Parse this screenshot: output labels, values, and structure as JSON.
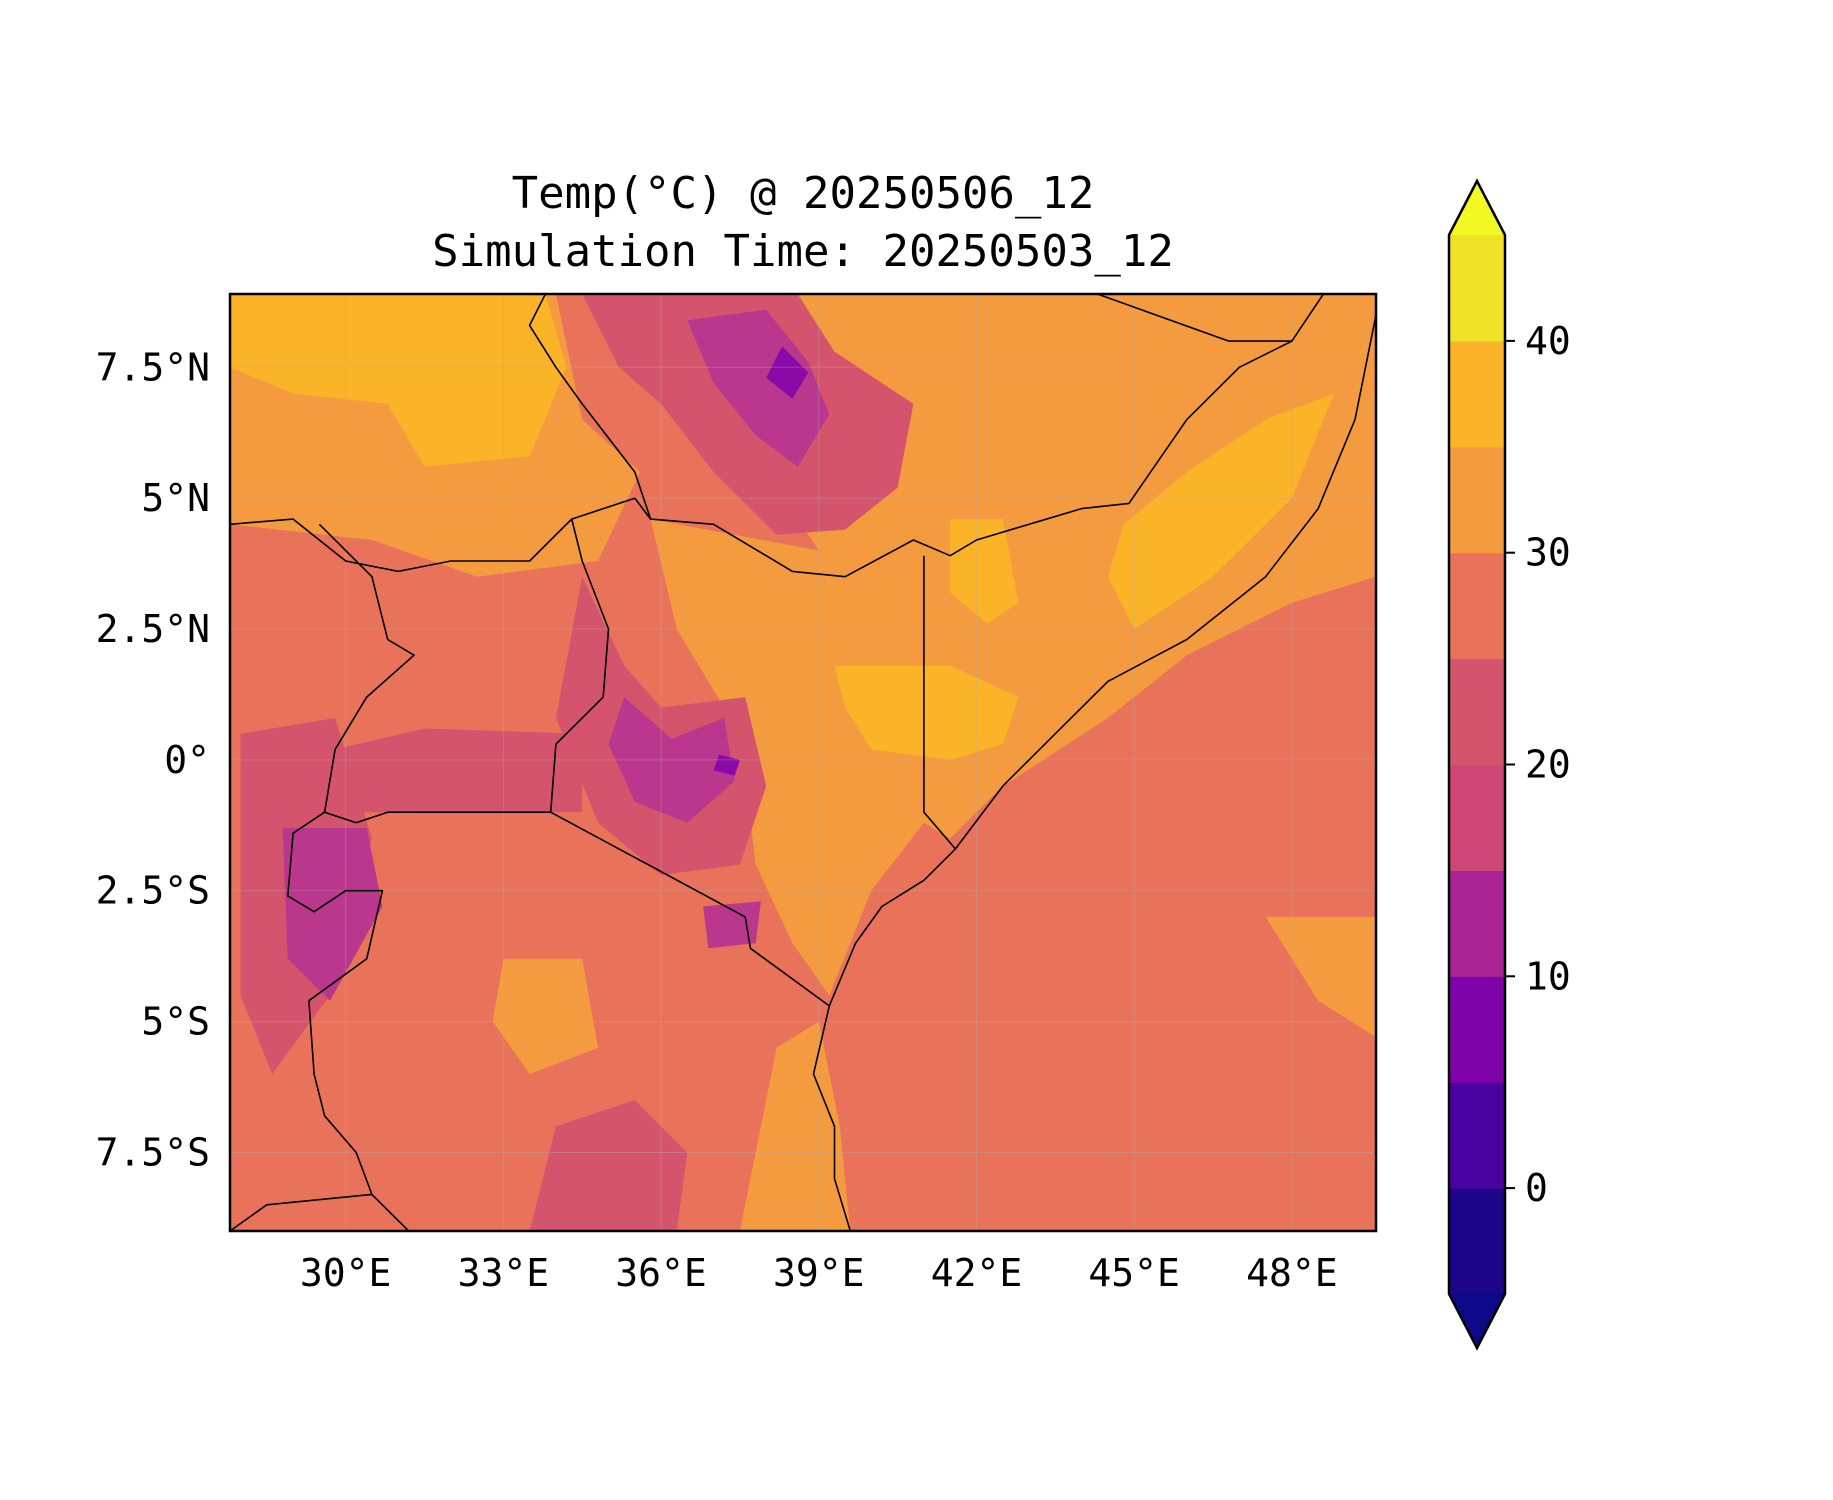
{
  "title": {
    "line1": "Temp(°C) @ 20250506_12",
    "line2": "Simulation Time: 20250503_12"
  },
  "map": {
    "lon_range": [
      27.8,
      49.6
    ],
    "lat_range": [
      -9.0,
      8.9
    ],
    "lon_ticks": [
      "30°E",
      "33°E",
      "36°E",
      "39°E",
      "42°E",
      "45°E",
      "48°E"
    ],
    "lon_tick_values": [
      30,
      33,
      36,
      39,
      42,
      45,
      48
    ],
    "lat_ticks": [
      "7.5°N",
      "5°N",
      "2.5°N",
      "0°",
      "2.5°S",
      "5°S",
      "7.5°S"
    ],
    "lat_tick_values": [
      7.5,
      5,
      2.5,
      0,
      -2.5,
      -5,
      -7.5
    ],
    "gridlines": true,
    "background_color": "#e8735a",
    "zones": [
      {
        "name": "northwest-warm",
        "color": "#f59b3f",
        "points": [
          [
            27.8,
            8.9
          ],
          [
            34.0,
            8.9
          ],
          [
            34.5,
            6.5
          ],
          [
            35.6,
            5.5
          ],
          [
            34.8,
            3.8
          ],
          [
            32.5,
            3.5
          ],
          [
            30.5,
            4.2
          ],
          [
            27.8,
            4.5
          ]
        ]
      },
      {
        "name": "south-sudan-hot",
        "color": "#fbb328",
        "points": [
          [
            27.8,
            8.9
          ],
          [
            33.8,
            8.9
          ],
          [
            34.2,
            7.5
          ],
          [
            33.5,
            5.8
          ],
          [
            31.5,
            5.6
          ],
          [
            30.8,
            6.8
          ],
          [
            29.0,
            7.0
          ],
          [
            27.8,
            7.5
          ]
        ]
      },
      {
        "name": "kenya-lowland",
        "color": "#f59b3f",
        "points": [
          [
            35.8,
            4.6
          ],
          [
            39.0,
            4.0
          ],
          [
            41.0,
            3.9
          ],
          [
            41.0,
            -1.2
          ],
          [
            40.0,
            -2.5
          ],
          [
            39.2,
            -4.5
          ],
          [
            38.5,
            -3.5
          ],
          [
            37.8,
            -2.0
          ],
          [
            37.5,
            0.5
          ],
          [
            36.3,
            2.5
          ]
        ]
      },
      {
        "name": "ethiopia-somalia-warm",
        "color": "#f59b3f",
        "points": [
          [
            38.5,
            8.9
          ],
          [
            49.6,
            8.9
          ],
          [
            49.6,
            3.5
          ],
          [
            48.0,
            3.0
          ],
          [
            46.0,
            2.0
          ],
          [
            44.5,
            0.8
          ],
          [
            42.5,
            -0.5
          ],
          [
            41.5,
            -1.5
          ],
          [
            41.0,
            -1.2
          ],
          [
            41.0,
            3.9
          ],
          [
            39.0,
            4.0
          ],
          [
            38.0,
            5.5
          ],
          [
            38.3,
            7.5
          ]
        ]
      },
      {
        "name": "somalia-hot",
        "color": "#fbb328",
        "points": [
          [
            44.8,
            4.5
          ],
          [
            46.0,
            5.5
          ],
          [
            47.5,
            6.5
          ],
          [
            48.8,
            7.0
          ],
          [
            48.0,
            5.0
          ],
          [
            46.5,
            3.5
          ],
          [
            45.0,
            2.5
          ],
          [
            44.5,
            3.5
          ]
        ]
      },
      {
        "name": "kenya-east-hot",
        "color": "#fbb328",
        "points": [
          [
            39.3,
            1.8
          ],
          [
            41.5,
            1.8
          ],
          [
            42.8,
            1.2
          ],
          [
            42.5,
            0.3
          ],
          [
            41.5,
            0.0
          ],
          [
            40.0,
            0.2
          ],
          [
            39.5,
            1.0
          ]
        ]
      },
      {
        "name": "mandera-hot",
        "color": "#fbb328",
        "points": [
          [
            41.5,
            4.6
          ],
          [
            42.5,
            4.6
          ],
          [
            42.8,
            3.0
          ],
          [
            42.2,
            2.6
          ],
          [
            41.5,
            3.2
          ]
        ]
      },
      {
        "name": "ethiopian-highlands",
        "color": "#d4546e",
        "points": [
          [
            34.5,
            8.9
          ],
          [
            38.6,
            8.9
          ],
          [
            39.3,
            7.8
          ],
          [
            40.8,
            6.8
          ],
          [
            40.5,
            5.2
          ],
          [
            39.5,
            4.4
          ],
          [
            38.2,
            4.3
          ],
          [
            37.0,
            5.5
          ],
          [
            36.0,
            6.8
          ],
          [
            35.2,
            7.5
          ]
        ]
      },
      {
        "name": "ethiopian-highlands-cool",
        "color": "#b9378c",
        "points": [
          [
            36.5,
            8.4
          ],
          [
            38.0,
            8.6
          ],
          [
            38.8,
            7.6
          ],
          [
            39.2,
            6.6
          ],
          [
            38.6,
            5.6
          ],
          [
            37.8,
            6.2
          ],
          [
            37.0,
            7.2
          ]
        ]
      },
      {
        "name": "ethiopian-peak",
        "color": "#8a0aa8",
        "points": [
          [
            38.3,
            7.9
          ],
          [
            38.8,
            7.4
          ],
          [
            38.5,
            6.9
          ],
          [
            38.0,
            7.3
          ]
        ]
      },
      {
        "name": "lake-victoria-basin",
        "color": "#d4546e",
        "points": [
          [
            29.3,
            -1.0
          ],
          [
            34.5,
            -1.0
          ],
          [
            34.5,
            0.5
          ],
          [
            31.5,
            0.6
          ],
          [
            29.8,
            0.2
          ]
        ]
      },
      {
        "name": "kenya-highlands",
        "color": "#d4546e",
        "points": [
          [
            34.5,
            3.5
          ],
          [
            35.3,
            1.8
          ],
          [
            36.0,
            1.0
          ],
          [
            37.6,
            1.2
          ],
          [
            38.0,
            -0.5
          ],
          [
            37.5,
            -2.0
          ],
          [
            36.0,
            -2.2
          ],
          [
            34.8,
            -1.2
          ],
          [
            34.0,
            0.8
          ]
        ]
      },
      {
        "name": "kenya-highlands-cool",
        "color": "#b9378c",
        "points": [
          [
            35.3,
            1.2
          ],
          [
            36.2,
            0.4
          ],
          [
            37.2,
            0.8
          ],
          [
            37.4,
            -0.4
          ],
          [
            36.5,
            -1.2
          ],
          [
            35.5,
            -0.8
          ],
          [
            35.0,
            0.3
          ]
        ]
      },
      {
        "name": "mt-kenya",
        "color": "#8a0aa8",
        "points": [
          [
            37.1,
            0.1
          ],
          [
            37.5,
            0.0
          ],
          [
            37.4,
            -0.3
          ],
          [
            37.0,
            -0.2
          ]
        ]
      },
      {
        "name": "albertine-rift",
        "color": "#d4546e",
        "points": [
          [
            28.0,
            0.5
          ],
          [
            29.8,
            0.8
          ],
          [
            30.5,
            -1.5
          ],
          [
            29.7,
            -4.5
          ],
          [
            28.6,
            -6.0
          ],
          [
            28.0,
            -4.5
          ]
        ]
      },
      {
        "name": "rwanda-burundi",
        "color": "#b9378c",
        "points": [
          [
            28.8,
            -1.3
          ],
          [
            30.4,
            -1.3
          ],
          [
            30.7,
            -2.8
          ],
          [
            29.7,
            -4.6
          ],
          [
            28.9,
            -3.8
          ]
        ]
      },
      {
        "name": "kilimanjaro",
        "color": "#b9378c",
        "points": [
          [
            36.8,
            -2.8
          ],
          [
            37.9,
            -2.7
          ],
          [
            37.8,
            -3.5
          ],
          [
            36.9,
            -3.6
          ]
        ]
      },
      {
        "name": "tanzania-highlands",
        "color": "#d4546e",
        "points": [
          [
            34.0,
            -7.0
          ],
          [
            35.5,
            -6.5
          ],
          [
            36.5,
            -7.5
          ],
          [
            36.3,
            -9.0
          ],
          [
            33.5,
            -9.0
          ]
        ]
      },
      {
        "name": "tanzania-central-warm",
        "color": "#f59b3f",
        "points": [
          [
            33.0,
            -3.8
          ],
          [
            34.5,
            -3.8
          ],
          [
            34.8,
            -5.5
          ],
          [
            33.5,
            -6.0
          ],
          [
            32.8,
            -5.0
          ]
        ]
      },
      {
        "name": "tanzania-coast-warm",
        "color": "#f59b3f",
        "points": [
          [
            38.2,
            -5.5
          ],
          [
            39.0,
            -5.0
          ],
          [
            39.4,
            -7.0
          ],
          [
            39.6,
            -9.0
          ],
          [
            37.5,
            -9.0
          ],
          [
            37.8,
            -7.5
          ]
        ]
      },
      {
        "name": "indian-ocean-warm",
        "color": "#f59b3f",
        "points": [
          [
            47.5,
            -3.0
          ],
          [
            49.6,
            -3.0
          ],
          [
            49.6,
            -5.3
          ],
          [
            48.5,
            -4.6
          ]
        ]
      }
    ],
    "borders": [
      [
        [
          27.8,
          4.5
        ],
        [
          29.0,
          4.6
        ],
        [
          30.0,
          3.8
        ],
        [
          31.0,
          3.6
        ],
        [
          32.0,
          3.8
        ],
        [
          33.5,
          3.8
        ],
        [
          34.3,
          4.6
        ],
        [
          35.5,
          5.0
        ],
        [
          35.8,
          4.6
        ],
        [
          37.0,
          4.5
        ],
        [
          38.5,
          3.6
        ],
        [
          39.5,
          3.5
        ],
        [
          40.8,
          4.2
        ],
        [
          41.5,
          3.9
        ],
        [
          42.0,
          4.2
        ],
        [
          43.0,
          4.5
        ],
        [
          44.0,
          4.8
        ],
        [
          44.9,
          4.9
        ],
        [
          46.0,
          6.5
        ],
        [
          47.0,
          7.5
        ],
        [
          48.0,
          8.0
        ],
        [
          48.6,
          8.9
        ]
      ],
      [
        [
          33.8,
          8.9
        ],
        [
          33.5,
          8.3
        ],
        [
          34.0,
          7.5
        ],
        [
          34.5,
          6.8
        ],
        [
          35.5,
          5.5
        ],
        [
          35.8,
          4.6
        ]
      ],
      [
        [
          44.3,
          8.9
        ],
        [
          46.8,
          8.0
        ],
        [
          48.0,
          8.0
        ]
      ],
      [
        [
          41.0,
          3.9
        ],
        [
          41.0,
          -1.0
        ],
        [
          41.6,
          -1.7
        ]
      ],
      [
        [
          29.5,
          4.5
        ],
        [
          30.5,
          3.5
        ],
        [
          30.8,
          2.3
        ],
        [
          31.3,
          2.0
        ],
        [
          30.4,
          1.2
        ],
        [
          29.8,
          0.2
        ],
        [
          29.6,
          -1.0
        ],
        [
          30.2,
          -1.2
        ],
        [
          30.8,
          -1.0
        ],
        [
          33.9,
          -1.0
        ],
        [
          34.0,
          0.3
        ],
        [
          34.9,
          1.2
        ],
        [
          35.0,
          2.5
        ],
        [
          34.5,
          3.8
        ],
        [
          34.3,
          4.6
        ]
      ],
      [
        [
          33.9,
          -1.0
        ],
        [
          37.6,
          -3.0
        ],
        [
          37.7,
          -3.6
        ],
        [
          39.2,
          -4.7
        ]
      ],
      [
        [
          29.6,
          -1.0
        ],
        [
          29.0,
          -1.4
        ],
        [
          28.9,
          -2.6
        ],
        [
          29.4,
          -2.9
        ],
        [
          30.0,
          -2.5
        ],
        [
          30.7,
          -2.5
        ],
        [
          30.4,
          -3.8
        ],
        [
          29.3,
          -4.6
        ]
      ],
      [
        [
          27.8,
          -9.0
        ],
        [
          28.5,
          -8.5
        ],
        [
          30.5,
          -8.3
        ]
      ],
      [
        [
          41.6,
          -1.7
        ],
        [
          41.0,
          -2.3
        ],
        [
          40.2,
          -2.8
        ],
        [
          39.7,
          -3.5
        ],
        [
          39.2,
          -4.7
        ],
        [
          38.9,
          -6.0
        ],
        [
          39.3,
          -7.0
        ],
        [
          39.3,
          -8.0
        ],
        [
          39.6,
          -9.0
        ]
      ],
      [
        [
          41.6,
          -1.7
        ],
        [
          42.5,
          -0.5
        ],
        [
          43.5,
          0.5
        ],
        [
          44.5,
          1.5
        ],
        [
          46.0,
          2.3
        ],
        [
          47.5,
          3.5
        ],
        [
          48.5,
          4.8
        ],
        [
          49.2,
          6.5
        ],
        [
          49.6,
          8.5
        ]
      ],
      [
        [
          29.3,
          -4.6
        ],
        [
          29.4,
          -6.0
        ],
        [
          29.6,
          -6.8
        ],
        [
          30.2,
          -7.5
        ],
        [
          30.5,
          -8.3
        ],
        [
          31.2,
          -9.0
        ]
      ]
    ]
  },
  "colorbar": {
    "tick_labels": [
      "0",
      "10",
      "20",
      "30",
      "40"
    ],
    "tick_values": [
      0,
      10,
      20,
      30,
      40
    ],
    "levels": [
      -5,
      0,
      5,
      10,
      15,
      20,
      25,
      30,
      35,
      40,
      45
    ],
    "colors": [
      "#1d0589",
      "#4c02a1",
      "#7e03a8",
      "#a92395",
      "#cc4778",
      "#d4546e",
      "#e8735a",
      "#f59b3f",
      "#fbb328",
      "#f0e227"
    ],
    "under_color": "#0d0887",
    "over_color": "#f0f921"
  }
}
